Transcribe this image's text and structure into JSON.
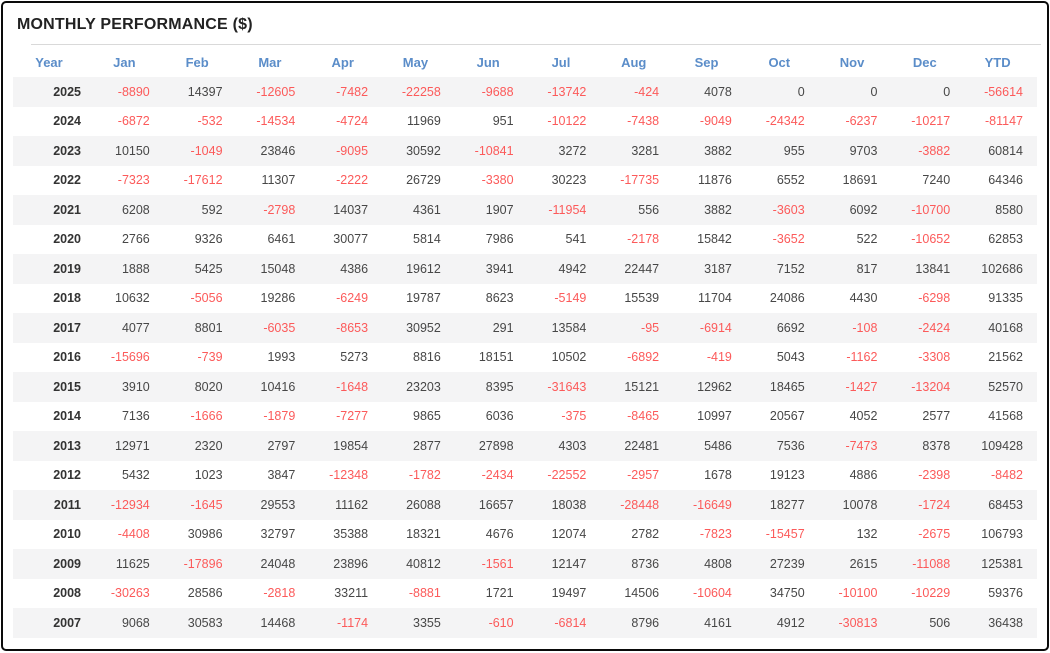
{
  "chart_data": {
    "type": "table",
    "title": "MONTHLY PERFORMANCE ($)",
    "columns": [
      "Year",
      "Jan",
      "Feb",
      "Mar",
      "Apr",
      "May",
      "Jun",
      "Jul",
      "Aug",
      "Sep",
      "Oct",
      "Nov",
      "Dec",
      "YTD"
    ],
    "rows": [
      {
        "year": "2025",
        "values": [
          -8890,
          14397,
          -12605,
          -7482,
          -22258,
          -9688,
          -13742,
          -424,
          4078,
          0,
          0,
          0,
          -56614
        ]
      },
      {
        "year": "2024",
        "values": [
          -6872,
          -532,
          -14534,
          -4724,
          11969,
          951,
          -10122,
          -7438,
          -9049,
          -24342,
          -6237,
          -10217,
          -81147
        ]
      },
      {
        "year": "2023",
        "values": [
          10150,
          -1049,
          23846,
          -9095,
          30592,
          -10841,
          3272,
          3281,
          3882,
          955,
          9703,
          -3882,
          60814
        ]
      },
      {
        "year": "2022",
        "values": [
          -7323,
          -17612,
          11307,
          -2222,
          26729,
          -3380,
          30223,
          -17735,
          11876,
          6552,
          18691,
          7240,
          64346
        ]
      },
      {
        "year": "2021",
        "values": [
          6208,
          592,
          -2798,
          14037,
          4361,
          1907,
          -11954,
          556,
          3882,
          -3603,
          6092,
          -10700,
          8580
        ]
      },
      {
        "year": "2020",
        "values": [
          2766,
          9326,
          6461,
          30077,
          5814,
          7986,
          541,
          -2178,
          15842,
          -3652,
          522,
          -10652,
          62853
        ]
      },
      {
        "year": "2019",
        "values": [
          1888,
          5425,
          15048,
          4386,
          19612,
          3941,
          4942,
          22447,
          3187,
          7152,
          817,
          13841,
          102686
        ]
      },
      {
        "year": "2018",
        "values": [
          10632,
          -5056,
          19286,
          -6249,
          19787,
          8623,
          -5149,
          15539,
          11704,
          24086,
          4430,
          -6298,
          91335
        ]
      },
      {
        "year": "2017",
        "values": [
          4077,
          8801,
          -6035,
          -8653,
          30952,
          291,
          13584,
          -95,
          -6914,
          6692,
          -108,
          -2424,
          40168
        ]
      },
      {
        "year": "2016",
        "values": [
          -15696,
          -739,
          1993,
          5273,
          8816,
          18151,
          10502,
          -6892,
          -419,
          5043,
          -1162,
          -3308,
          21562
        ]
      },
      {
        "year": "2015",
        "values": [
          3910,
          8020,
          10416,
          -1648,
          23203,
          8395,
          -31643,
          15121,
          12962,
          18465,
          -1427,
          -13204,
          52570
        ]
      },
      {
        "year": "2014",
        "values": [
          7136,
          -1666,
          -1879,
          -7277,
          9865,
          6036,
          -375,
          -8465,
          10997,
          20567,
          4052,
          2577,
          41568
        ]
      },
      {
        "year": "2013",
        "values": [
          12971,
          2320,
          2797,
          19854,
          2877,
          27898,
          4303,
          22481,
          5486,
          7536,
          -7473,
          8378,
          109428
        ]
      },
      {
        "year": "2012",
        "values": [
          5432,
          1023,
          3847,
          -12348,
          -1782,
          -2434,
          -22552,
          -2957,
          1678,
          19123,
          4886,
          -2398,
          -8482
        ]
      },
      {
        "year": "2011",
        "values": [
          -12934,
          -1645,
          29553,
          11162,
          26088,
          16657,
          18038,
          -28448,
          -16649,
          18277,
          10078,
          -1724,
          68453
        ]
      },
      {
        "year": "2010",
        "values": [
          -4408,
          30986,
          32797,
          35388,
          18321,
          4676,
          12074,
          2782,
          -7823,
          -15457,
          132,
          -2675,
          106793
        ]
      },
      {
        "year": "2009",
        "values": [
          11625,
          -17896,
          24048,
          23896,
          40812,
          -1561,
          12147,
          8736,
          4808,
          27239,
          2615,
          -11088,
          125381
        ]
      },
      {
        "year": "2008",
        "values": [
          -30263,
          28586,
          -2818,
          33211,
          -8881,
          1721,
          19497,
          14506,
          -10604,
          34750,
          -10100,
          -10229,
          59376
        ]
      },
      {
        "year": "2007",
        "values": [
          9068,
          30583,
          14468,
          -1174,
          3355,
          -610,
          -6814,
          8796,
          4161,
          4912,
          -30813,
          506,
          36438
        ]
      }
    ],
    "layout": {
      "zebra_striping": true,
      "first_data_row_shaded": true,
      "header_position": "top"
    }
  },
  "colors": {
    "header_text": "#5b8dc9",
    "negative": "#fc5a5a",
    "positive": "#474747",
    "year_text": "#333333",
    "title_text": "#222222",
    "stripe": "#f4f4f5",
    "divider": "#d9d9d9",
    "border": "#0a0a0a"
  }
}
